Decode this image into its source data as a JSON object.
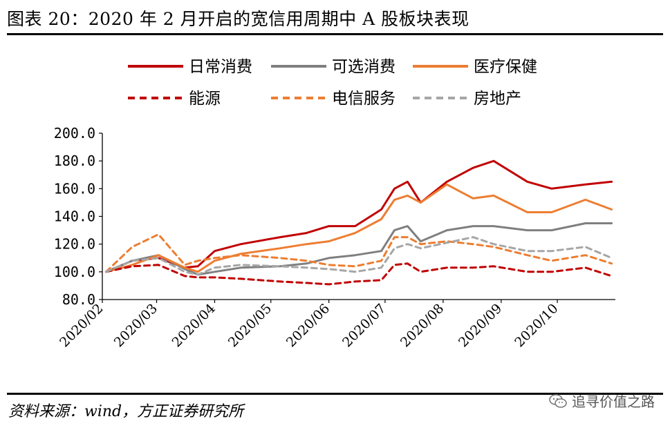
{
  "header": {
    "title": "图表 20：2020 年 2 月开启的宽信用周期中 A 股板块表现"
  },
  "footer": {
    "source": "资料来源：wind，方正证券研究所",
    "watermark": "追寻价值之路",
    "watermark_icon": "wechat-icon"
  },
  "chart_data": {
    "type": "line",
    "title": "",
    "xlabel": "",
    "ylabel": "",
    "ylim": [
      80,
      200
    ],
    "yticks": [
      "200.0",
      "180.0",
      "160.0",
      "140.0",
      "120.0",
      "100.0",
      "80.0"
    ],
    "xticks": [
      "2020/02",
      "2020/03",
      "2020/04",
      "2020/05",
      "2020/06",
      "2020/07",
      "2020/08",
      "2020/09",
      "2020/10"
    ],
    "x": [
      "2020-02-03",
      "2020-02-17",
      "2020-03-02",
      "2020-03-16",
      "2020-03-23",
      "2020-04-01",
      "2020-04-15",
      "2020-05-06",
      "2020-05-20",
      "2020-06-01",
      "2020-06-15",
      "2020-06-29",
      "2020-07-06",
      "2020-07-13",
      "2020-07-20",
      "2020-08-03",
      "2020-08-17",
      "2020-08-28",
      "2020-09-15",
      "2020-09-28",
      "2020-10-16",
      "2020-10-30"
    ],
    "legend_position": "top",
    "grid": false,
    "series": [
      {
        "name": "日常消费",
        "color": "#C00000",
        "dash": "solid",
        "values": [
          100,
          108,
          110,
          103,
          104,
          115,
          120,
          125,
          128,
          133,
          133,
          145,
          160,
          165,
          150,
          165,
          175,
          180,
          165,
          160,
          163,
          165
        ]
      },
      {
        "name": "可选消费",
        "color": "#7F7F7F",
        "dash": "solid",
        "values": [
          100,
          108,
          112,
          102,
          98,
          100,
          103,
          104,
          106,
          110,
          112,
          115,
          130,
          133,
          122,
          130,
          133,
          133,
          130,
          130,
          135,
          135
        ]
      },
      {
        "name": "医疗保健",
        "color": "#ED7D31",
        "dash": "solid",
        "values": [
          100,
          105,
          112,
          103,
          100,
          108,
          113,
          117,
          120,
          122,
          128,
          138,
          152,
          155,
          150,
          163,
          153,
          155,
          143,
          143,
          152,
          145
        ]
      },
      {
        "name": "能源",
        "color": "#C00000",
        "dash": "dashed",
        "values": [
          100,
          104,
          105,
          97,
          96,
          96,
          95,
          93,
          92,
          91,
          93,
          94,
          105,
          106,
          100,
          103,
          103,
          104,
          100,
          100,
          103,
          97
        ]
      },
      {
        "name": "电信服务",
        "color": "#ED7D31",
        "dash": "dashed",
        "values": [
          100,
          118,
          127,
          105,
          108,
          110,
          112,
          110,
          108,
          105,
          104,
          108,
          125,
          125,
          120,
          122,
          120,
          118,
          112,
          108,
          112,
          106
        ]
      },
      {
        "name": "房地产",
        "color": "#A6A6A6",
        "dash": "dashed",
        "values": [
          100,
          108,
          110,
          100,
          98,
          103,
          105,
          104,
          103,
          102,
          100,
          103,
          117,
          120,
          117,
          121,
          125,
          120,
          115,
          115,
          118,
          110
        ]
      }
    ]
  }
}
